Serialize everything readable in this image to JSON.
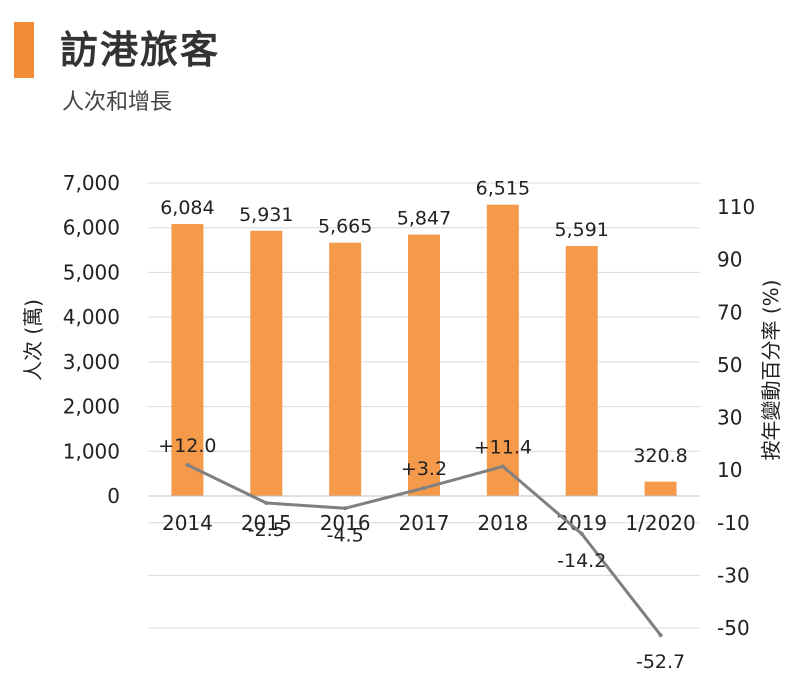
{
  "title": "訪港旅客",
  "subtitle": "人次和增長",
  "colors": {
    "accent": "#F08C36",
    "bar": "#F5994B",
    "line": "#808080",
    "grid": "#d9d9d9"
  },
  "chart_data": {
    "type": "bar",
    "categories": [
      "2014",
      "2015",
      "2016",
      "2017",
      "2018",
      "2019",
      "1/2020"
    ],
    "series": [
      {
        "values": [
          6084,
          5931,
          5665,
          5847,
          6515,
          5591,
          320.8
        ],
        "labels": [
          "6,084",
          "5,931",
          "5,665",
          "5,847",
          "6,515",
          "5,591",
          "320.8"
        ],
        "axis": "left"
      },
      {
        "type": "line",
        "values": [
          12.0,
          -2.5,
          -4.5,
          3.2,
          11.4,
          -14.2,
          -52.7
        ],
        "labels": [
          "+12.0",
          "-2.5",
          "-4.5",
          "+3.2",
          "+11.4",
          "-14.2",
          "-52.7"
        ],
        "axis": "right"
      }
    ],
    "y_left": {
      "label": "人次 (萬)",
      "min": 0,
      "max": 7000,
      "ticks": [
        "0",
        "1,000",
        "2,000",
        "3,000",
        "4,000",
        "5,000",
        "6,000",
        "7,000"
      ]
    },
    "y_right": {
      "label": "按年變動百分率 (%)",
      "min": -50,
      "max": 110,
      "ticks": [
        "-50",
        "-30",
        "-10",
        "10",
        "30",
        "50",
        "70",
        "90",
        "110"
      ]
    },
    "grid": "horizontal"
  }
}
